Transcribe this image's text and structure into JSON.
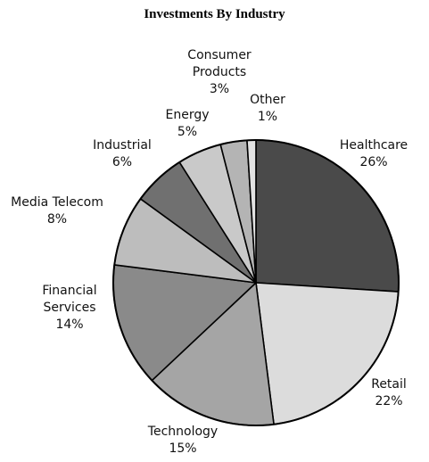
{
  "chart_data": {
    "type": "pie",
    "title": "Investments By Industry",
    "start_angle_deg": 0,
    "direction": "clockwise",
    "slices": [
      {
        "label_lines": [
          "Healthcare"
        ],
        "value_label": "26%",
        "value": 26,
        "color": "#4a4a4a"
      },
      {
        "label_lines": [
          "Retail"
        ],
        "value_label": "22%",
        "value": 22,
        "color": "#dcdcdc"
      },
      {
        "label_lines": [
          "Technology"
        ],
        "value_label": "15%",
        "value": 15,
        "color": "#a5a5a5"
      },
      {
        "label_lines": [
          "Financial",
          "Services"
        ],
        "value_label": "14%",
        "value": 14,
        "color": "#8a8a8a"
      },
      {
        "label_lines": [
          "Media Telecom"
        ],
        "value_label": "8%",
        "value": 8,
        "color": "#bdbdbd"
      },
      {
        "label_lines": [
          "Industrial"
        ],
        "value_label": "6%",
        "value": 6,
        "color": "#707070"
      },
      {
        "label_lines": [
          "Energy"
        ],
        "value_label": "5%",
        "value": 5,
        "color": "#c9c9c9"
      },
      {
        "label_lines": [
          "Consumer",
          "Products"
        ],
        "value_label": "3%",
        "value": 3,
        "color": "#b4b4b4"
      },
      {
        "label_lines": [
          "Other"
        ],
        "value_label": "1%",
        "value": 1,
        "color": "#e2e2e2"
      }
    ]
  }
}
